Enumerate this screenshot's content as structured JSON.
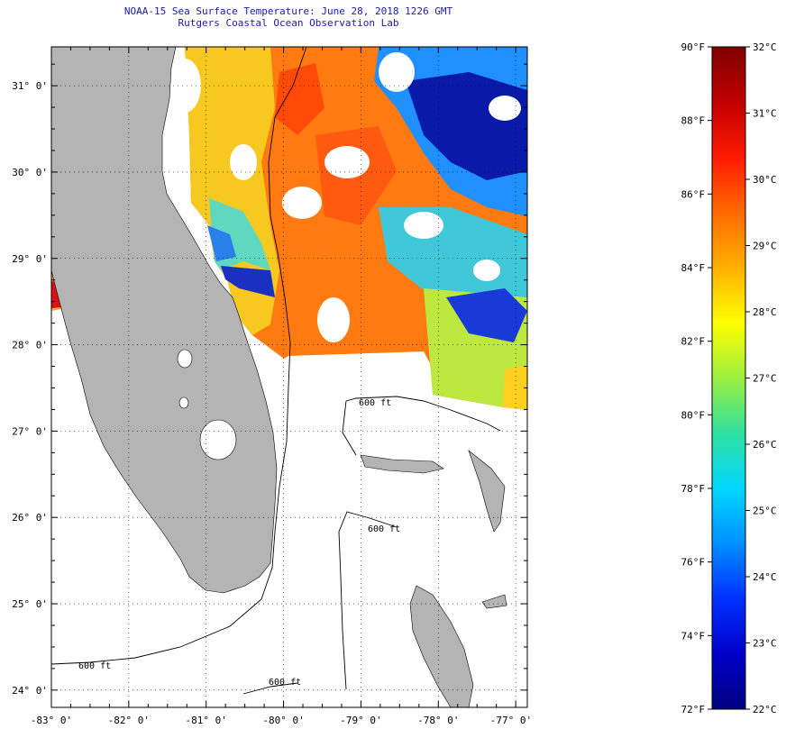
{
  "title": {
    "line1": "NOAA-15 Sea Surface Temperature:  June 28, 2018 1226 GMT",
    "line2": "Rutgers Coastal Ocean Observation Lab"
  },
  "map": {
    "lat_range": [
      23.8,
      31.45
    ],
    "lon_range": [
      -83.0,
      -76.85
    ],
    "lat_ticks": [
      {
        "value": 31,
        "label": "31° 0'"
      },
      {
        "value": 30,
        "label": "30° 0'"
      },
      {
        "value": 29,
        "label": "29° 0'"
      },
      {
        "value": 28,
        "label": "28° 0'"
      },
      {
        "value": 27,
        "label": "27° 0'"
      },
      {
        "value": 26,
        "label": "26° 0'"
      },
      {
        "value": 25,
        "label": "25° 0'"
      },
      {
        "value": 24,
        "label": "24° 0'"
      }
    ],
    "lon_ticks": [
      {
        "value": -83,
        "label": "-83° 0'"
      },
      {
        "value": -82,
        "label": "-82° 0'"
      },
      {
        "value": -81,
        "label": "-81° 0'"
      },
      {
        "value": -80,
        "label": "-80° 0'"
      },
      {
        "value": -79,
        "label": "-79° 0'"
      },
      {
        "value": -78,
        "label": "-78° 0'"
      },
      {
        "value": -77,
        "label": "-77° 0'"
      }
    ],
    "contour_labels": [
      "600 ft",
      "600 ft",
      "600 ft",
      "600 ft"
    ],
    "land_color": "#b4b4b4",
    "grid": "dotted"
  },
  "colorbar": {
    "f_labels": [
      "90°F",
      "88°F",
      "86°F",
      "84°F",
      "82°F",
      "80°F",
      "78°F",
      "76°F",
      "74°F",
      "72°F"
    ],
    "c_labels": [
      "32°C",
      "31°C",
      "30°C",
      "29°C",
      "28°C",
      "27°C",
      "26°C",
      "25°C",
      "24°C",
      "23°C",
      "22°C"
    ],
    "colors_top_to_bottom": [
      "#800000",
      "#c00000",
      "#ff1a00",
      "#ff6a00",
      "#ffb000",
      "#ffff00",
      "#9cf040",
      "#30e0a0",
      "#00d8ff",
      "#0090ff",
      "#0030ff",
      "#0000c8",
      "#000080"
    ]
  }
}
